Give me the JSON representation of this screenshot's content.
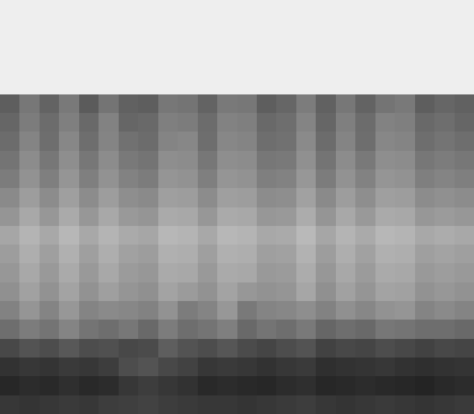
{
  "chart_data": {
    "type": "heatmap",
    "tick_labels": false,
    "zlim": [
      0,
      1
    ],
    "cells": [
      [
        null,
        null,
        null,
        null,
        null,
        null,
        null,
        null,
        null,
        null,
        null,
        null,
        null,
        null,
        null,
        null,
        null,
        null,
        null,
        null,
        null,
        null,
        null,
        null
      ],
      [
        null,
        null,
        null,
        null,
        null,
        null,
        null,
        null,
        null,
        null,
        null,
        null,
        null,
        null,
        null,
        null,
        null,
        null,
        null,
        null,
        null,
        null,
        null,
        null
      ],
      [
        null,
        null,
        null,
        null,
        null,
        null,
        null,
        null,
        null,
        null,
        null,
        null,
        null,
        null,
        null,
        null,
        null,
        null,
        null,
        null,
        null,
        null,
        null,
        null
      ],
      [
        null,
        null,
        null,
        null,
        null,
        null,
        null,
        null,
        null,
        null,
        null,
        null,
        null,
        null,
        null,
        null,
        null,
        null,
        null,
        null,
        null,
        null,
        null,
        null
      ],
      [
        null,
        null,
        null,
        null,
        null,
        null,
        null,
        null,
        null,
        null,
        null,
        null,
        null,
        null,
        null,
        null,
        null,
        null,
        null,
        null,
        null,
        null,
        null,
        null
      ],
      [
        0.66,
        0.57,
        0.64,
        0.56,
        0.67,
        0.58,
        0.65,
        0.66,
        0.57,
        0.58,
        0.64,
        0.56,
        0.57,
        0.66,
        0.63,
        0.55,
        0.65,
        0.57,
        0.64,
        0.58,
        0.56,
        0.66,
        0.63,
        0.65
      ],
      [
        0.63,
        0.55,
        0.61,
        0.54,
        0.62,
        0.53,
        0.63,
        0.62,
        0.54,
        0.55,
        0.61,
        0.53,
        0.54,
        0.62,
        0.6,
        0.52,
        0.63,
        0.54,
        0.61,
        0.53,
        0.54,
        0.62,
        0.6,
        0.63
      ],
      [
        0.61,
        0.52,
        0.6,
        0.51,
        0.6,
        0.52,
        0.59,
        0.61,
        0.52,
        0.51,
        0.6,
        0.51,
        0.52,
        0.6,
        0.59,
        0.5,
        0.61,
        0.52,
        0.6,
        0.51,
        0.52,
        0.6,
        0.58,
        0.6
      ],
      [
        0.58,
        0.49,
        0.57,
        0.48,
        0.57,
        0.49,
        0.56,
        0.58,
        0.48,
        0.49,
        0.57,
        0.48,
        0.49,
        0.57,
        0.56,
        0.47,
        0.58,
        0.49,
        0.56,
        0.48,
        0.49,
        0.57,
        0.55,
        0.57
      ],
      [
        0.55,
        0.46,
        0.54,
        0.45,
        0.54,
        0.46,
        0.53,
        0.55,
        0.45,
        0.46,
        0.54,
        0.45,
        0.46,
        0.54,
        0.53,
        0.44,
        0.55,
        0.46,
        0.53,
        0.45,
        0.46,
        0.54,
        0.52,
        0.54
      ],
      [
        0.5,
        0.41,
        0.49,
        0.4,
        0.49,
        0.41,
        0.48,
        0.5,
        0.4,
        0.41,
        0.49,
        0.4,
        0.41,
        0.49,
        0.48,
        0.39,
        0.5,
        0.41,
        0.48,
        0.4,
        0.41,
        0.49,
        0.47,
        0.49
      ],
      [
        0.45,
        0.36,
        0.44,
        0.35,
        0.44,
        0.36,
        0.43,
        0.45,
        0.35,
        0.36,
        0.44,
        0.35,
        0.36,
        0.44,
        0.43,
        0.34,
        0.45,
        0.36,
        0.43,
        0.35,
        0.36,
        0.44,
        0.42,
        0.44
      ],
      [
        0.37,
        0.3,
        0.36,
        0.29,
        0.36,
        0.3,
        0.35,
        0.37,
        0.29,
        0.3,
        0.36,
        0.29,
        0.3,
        0.36,
        0.35,
        0.28,
        0.37,
        0.3,
        0.35,
        0.29,
        0.3,
        0.36,
        0.34,
        0.36
      ],
      [
        0.41,
        0.33,
        0.4,
        0.32,
        0.4,
        0.33,
        0.39,
        0.41,
        0.32,
        0.33,
        0.4,
        0.32,
        0.33,
        0.4,
        0.39,
        0.31,
        0.41,
        0.33,
        0.39,
        0.32,
        0.33,
        0.4,
        0.38,
        0.4
      ],
      [
        0.44,
        0.36,
        0.43,
        0.35,
        0.43,
        0.36,
        0.42,
        0.44,
        0.35,
        0.36,
        0.43,
        0.35,
        0.36,
        0.43,
        0.42,
        0.34,
        0.44,
        0.36,
        0.42,
        0.35,
        0.36,
        0.43,
        0.41,
        0.43
      ],
      [
        0.47,
        0.39,
        0.46,
        0.38,
        0.46,
        0.4,
        0.45,
        0.47,
        0.38,
        0.42,
        0.46,
        0.38,
        0.44,
        0.46,
        0.45,
        0.37,
        0.47,
        0.39,
        0.45,
        0.38,
        0.39,
        0.46,
        0.44,
        0.46
      ],
      [
        0.53,
        0.45,
        0.52,
        0.44,
        0.52,
        0.5,
        0.51,
        0.53,
        0.46,
        0.55,
        0.52,
        0.44,
        0.56,
        0.52,
        0.51,
        0.48,
        0.53,
        0.47,
        0.51,
        0.46,
        0.45,
        0.52,
        0.5,
        0.52
      ],
      [
        0.6,
        0.55,
        0.58,
        0.52,
        0.58,
        0.6,
        0.57,
        0.62,
        0.55,
        0.6,
        0.58,
        0.54,
        0.62,
        0.58,
        0.6,
        0.56,
        0.63,
        0.6,
        0.62,
        0.57,
        0.58,
        0.6,
        0.6,
        0.62
      ],
      [
        0.74,
        0.7,
        0.72,
        0.68,
        0.72,
        0.71,
        0.74,
        0.73,
        0.66,
        0.7,
        0.72,
        0.69,
        0.73,
        0.75,
        0.72,
        0.7,
        0.76,
        0.74,
        0.75,
        0.72,
        0.74,
        0.76,
        0.74,
        0.75
      ],
      [
        0.82,
        0.8,
        0.81,
        0.79,
        0.8,
        0.78,
        0.72,
        0.7,
        0.74,
        0.76,
        0.8,
        0.79,
        0.8,
        0.82,
        0.8,
        0.79,
        0.83,
        0.82,
        0.81,
        0.8,
        0.82,
        0.83,
        0.82,
        0.81
      ],
      [
        0.86,
        0.84,
        0.85,
        0.83,
        0.85,
        0.84,
        0.8,
        0.78,
        0.8,
        0.82,
        0.85,
        0.84,
        0.85,
        0.86,
        0.84,
        0.83,
        0.86,
        0.85,
        0.84,
        0.85,
        0.86,
        0.87,
        0.85,
        0.84
      ],
      [
        0.8,
        0.81,
        0.8,
        0.79,
        0.8,
        0.78,
        0.77,
        0.76,
        0.78,
        0.79,
        0.8,
        0.8,
        0.81,
        0.8,
        0.79,
        0.78,
        0.8,
        0.81,
        0.8,
        0.79,
        0.8,
        0.81,
        0.8,
        0.79
      ]
    ]
  }
}
